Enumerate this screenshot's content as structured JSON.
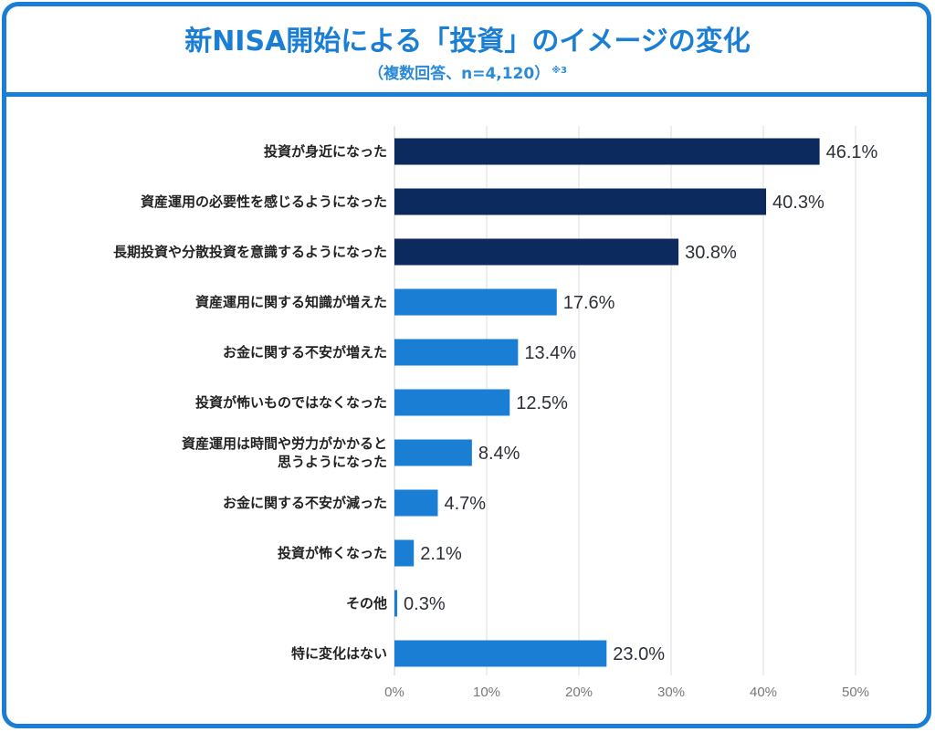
{
  "header": {
    "title": "新NISA開始による「投資」のイメージの変化",
    "subtitle": "（複数回答、n=4,120）",
    "footnote_mark": "※3"
  },
  "colors": {
    "frame": "#1a7fd4",
    "title": "#1a7fd4",
    "bar_dark": "#0d2a5e",
    "bar_light": "#1a7fd4",
    "grid": "#dddddd",
    "value_text": "#2b2f3a",
    "tick_text": "#777777"
  },
  "chart_data": {
    "type": "bar",
    "orientation": "horizontal",
    "title": "新NISA開始による「投資」のイメージの変化",
    "subtitle": "（複数回答、n=4,120）※3",
    "xlabel": "",
    "ylabel": "",
    "xlim": [
      0,
      50
    ],
    "x_ticks": [
      0,
      10,
      20,
      30,
      40,
      50
    ],
    "x_tick_labels": [
      "0%",
      "10%",
      "20%",
      "30%",
      "40%",
      "50%"
    ],
    "grid": true,
    "legend": "none",
    "categories": [
      [
        "投資が身近になった"
      ],
      [
        "資産運用の必要性を感じるようになった"
      ],
      [
        "長期投資や分散投資を意識するようになった"
      ],
      [
        "資産運用に関する知識が増えた"
      ],
      [
        "お金に関する不安が増えた"
      ],
      [
        "投資が怖いものではなくなった"
      ],
      [
        "資産運用は時間や労力がかかると",
        "思うようになった"
      ],
      [
        "お金に関する不安が減った"
      ],
      [
        "投資が怖くなった"
      ],
      [
        "その他"
      ],
      [
        "特に変化はない"
      ]
    ],
    "values": [
      46.1,
      40.3,
      30.8,
      17.6,
      13.4,
      12.5,
      8.4,
      4.7,
      2.1,
      0.3,
      23.0
    ],
    "value_labels": [
      "46.1%",
      "40.3%",
      "30.8%",
      "17.6%",
      "13.4%",
      "12.5%",
      "8.4%",
      "4.7%",
      "2.1%",
      "0.3%",
      "23.0%"
    ],
    "highlight": [
      true,
      true,
      true,
      false,
      false,
      false,
      false,
      false,
      false,
      false,
      false
    ]
  }
}
